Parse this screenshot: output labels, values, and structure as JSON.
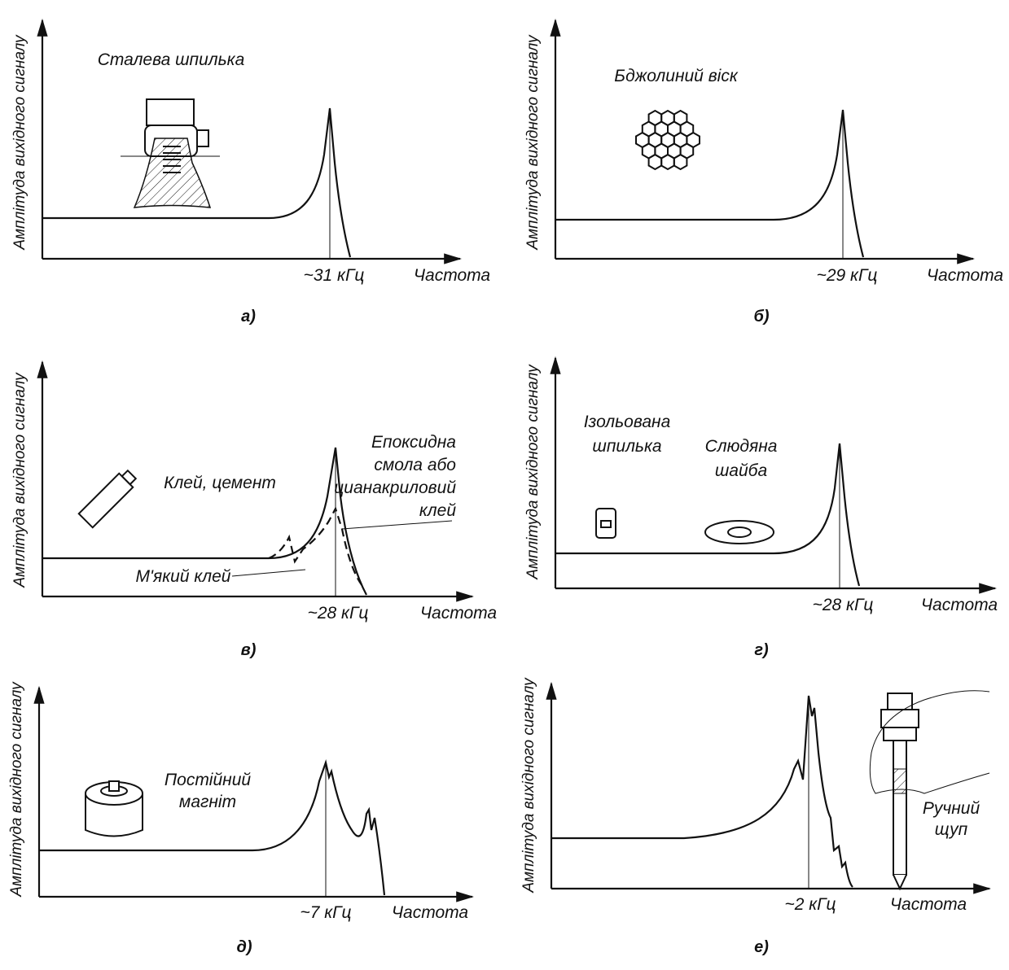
{
  "panels": [
    {
      "y_label": "Амплітуда вихідного сигналу",
      "peak_label": "~31 кГц",
      "x_label": "Частота",
      "caption": "а)",
      "annotations": [
        {
          "lines": [
            "Сталева шпилька"
          ]
        }
      ]
    },
    {
      "y_label": "Амплітуда вихідного сигналу",
      "peak_label": "~29 кГц",
      "x_label": "Частота",
      "caption": "б)",
      "annotations": [
        {
          "lines": [
            "Бджолиний віск"
          ]
        }
      ]
    },
    {
      "y_label": "Амплітуда вихідного сигналу",
      "peak_label": "~28 кГц",
      "x_label": "Частота",
      "caption": "в)",
      "annotations": [
        {
          "lines": [
            "Клей, цемент"
          ]
        },
        {
          "lines": [
            "Епоксидна",
            "смола або",
            "цианакриловий",
            "клей"
          ]
        },
        {
          "lines": [
            "М'який клей"
          ]
        }
      ]
    },
    {
      "y_label": "Амплітуда вихідного сигналу",
      "peak_label": "~28 кГц",
      "x_label": "Частота",
      "caption": "г)",
      "annotations": [
        {
          "lines": [
            "Ізольована",
            "шпилька"
          ]
        },
        {
          "lines": [
            "Слюдяна",
            "шайба"
          ]
        }
      ]
    },
    {
      "y_label": "Амплітуда вихідного сигналу",
      "peak_label": "~7 кГц",
      "x_label": "Частота",
      "caption": "д)",
      "annotations": [
        {
          "lines": [
            "Постійний",
            "магніт"
          ]
        }
      ]
    },
    {
      "y_label": "Амплітуда вихідного сигналу",
      "peak_label": "~2 кГц",
      "x_label": "Частота",
      "caption": "е)",
      "annotations": [
        {
          "lines": [
            "Ручний",
            "щуп"
          ]
        }
      ]
    }
  ]
}
